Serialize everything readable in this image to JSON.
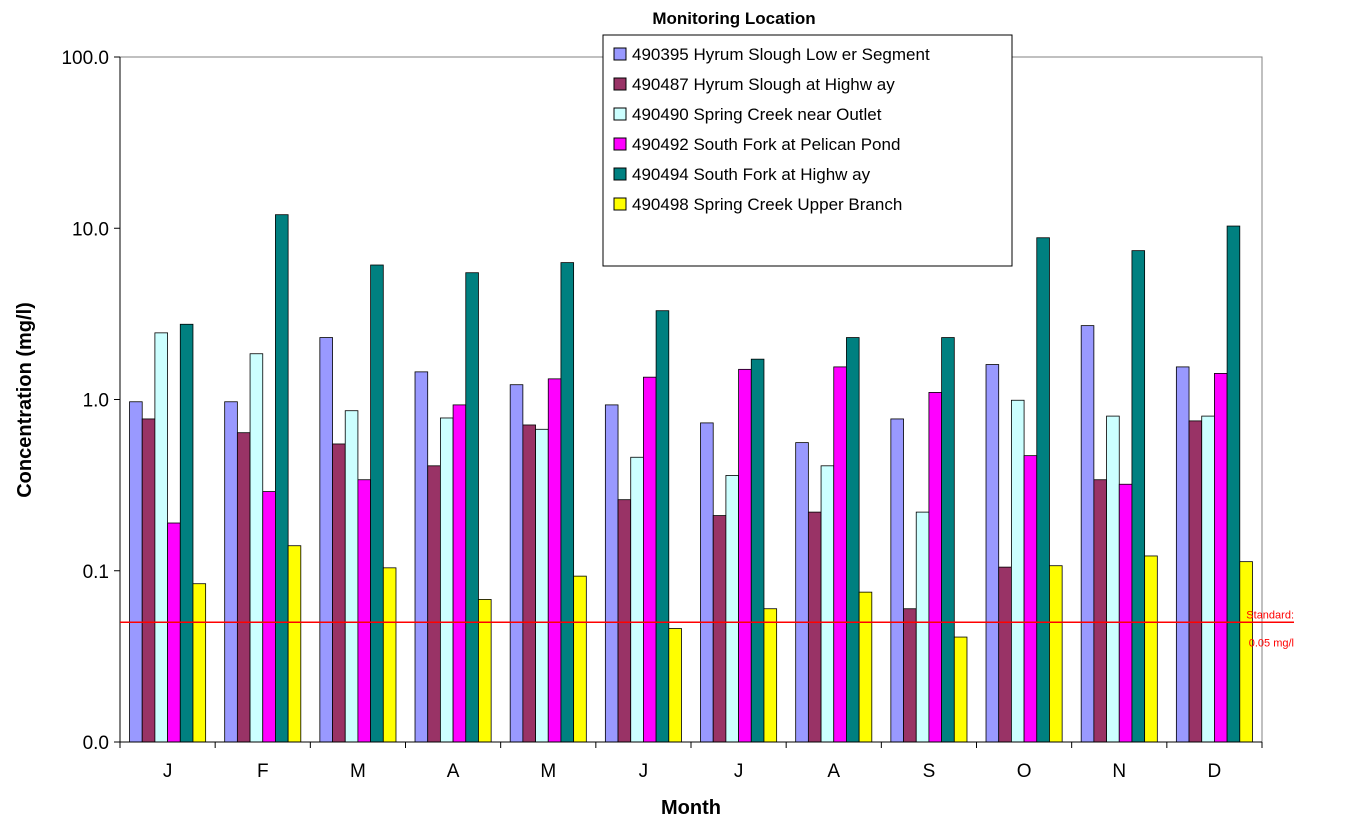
{
  "chart_data": {
    "type": "bar",
    "y_scale": "log",
    "ylim": [
      0.01,
      100
    ],
    "xlabel": "Month",
    "ylabel": "Concentration (mg/l)",
    "legend_title": "Monitoring Location",
    "legend_position": "top-center",
    "grid": false,
    "categories": [
      "J",
      "F",
      "M",
      "A",
      "M",
      "J",
      "J",
      "A",
      "S",
      "O",
      "N",
      "D"
    ],
    "y_tick_labels": [
      "100.0",
      "10.0",
      "1.0",
      "0.1",
      "0.0"
    ],
    "y_tick_values": [
      100,
      10,
      1,
      0.1,
      0.01
    ],
    "series": [
      {
        "name": "490395 Hyrum Slough Low er Segment",
        "color": "#9999ff",
        "values": [
          0.97,
          0.97,
          2.3,
          1.45,
          1.22,
          0.93,
          0.73,
          0.56,
          0.77,
          1.6,
          2.7,
          1.55
        ]
      },
      {
        "name": "490487 Hyrum Slough at Highw ay",
        "color": "#993366",
        "values": [
          0.77,
          0.64,
          0.55,
          0.41,
          0.71,
          0.26,
          0.21,
          0.22,
          0.06,
          0.105,
          0.34,
          0.75
        ]
      },
      {
        "name": "490490 Spring Creek near Outlet",
        "color": "#ccffff",
        "values": [
          2.45,
          1.85,
          0.86,
          0.78,
          0.67,
          0.46,
          0.36,
          0.41,
          0.22,
          0.99,
          0.8,
          0.8
        ]
      },
      {
        "name": "490492 South Fork at Pelican Pond",
        "color": "#ff00ff",
        "values": [
          0.19,
          0.29,
          0.34,
          0.93,
          1.32,
          1.35,
          1.5,
          1.55,
          1.1,
          0.47,
          0.32,
          1.42
        ]
      },
      {
        "name": "490494 South Fork at Highw ay",
        "color": "#008080",
        "values": [
          2.75,
          12.0,
          6.1,
          5.5,
          6.3,
          3.3,
          1.72,
          2.3,
          2.3,
          8.8,
          7.4,
          10.3
        ]
      },
      {
        "name": "490498 Spring Creek Upper Branch",
        "color": "#ffff00",
        "values": [
          0.084,
          0.14,
          0.104,
          0.068,
          0.093,
          0.046,
          0.06,
          0.075,
          0.041,
          0.107,
          0.122,
          0.113
        ]
      }
    ],
    "reference_line": {
      "value": 0.05,
      "color": "#ff0000",
      "label_line1": "Standard:",
      "label_line2": "0.05 mg/l"
    }
  }
}
